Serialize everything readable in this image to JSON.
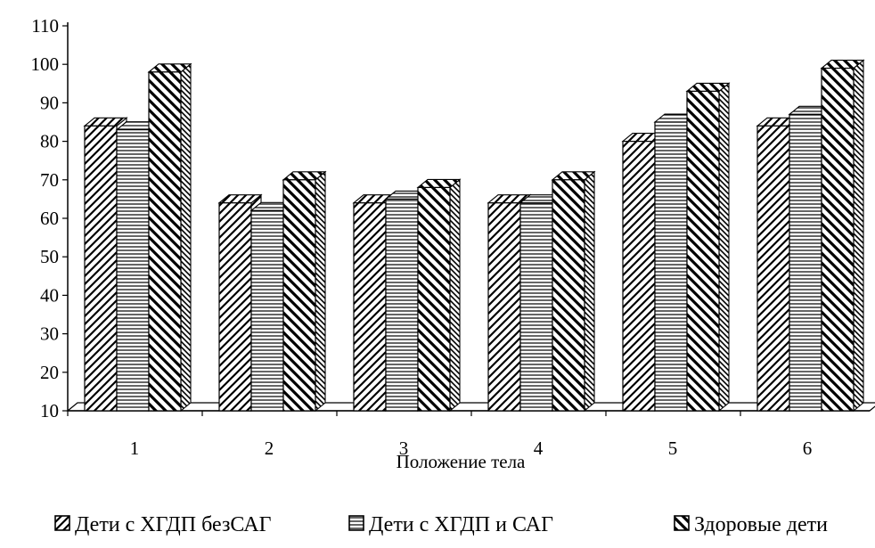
{
  "chart_data": {
    "type": "bar",
    "xlabel": "Положение тела",
    "ylabel": "",
    "ylim": [
      10,
      110
    ],
    "yticks": [
      10,
      20,
      30,
      40,
      50,
      60,
      70,
      80,
      90,
      100,
      110
    ],
    "categories": [
      "1",
      "2",
      "3",
      "4",
      "5",
      "6"
    ],
    "series": [
      {
        "name": "Дети с ХГДП безСАГ",
        "pattern": "diagonal-up",
        "values": [
          84,
          64,
          64,
          64,
          80,
          84
        ]
      },
      {
        "name": "Дети с ХГДП и САГ",
        "pattern": "horizontal",
        "values": [
          83,
          62,
          65,
          64,
          85,
          87
        ]
      },
      {
        "name": "Здоровые дети",
        "pattern": "diagonal-down",
        "values": [
          98,
          70,
          68,
          70,
          93,
          99
        ]
      }
    ],
    "grid": false,
    "legend_position": "bottom",
    "style": "3d-clustered-column",
    "colors": {
      "ink": "#000000",
      "fill": "#ffffff",
      "background": "#ffffff"
    }
  }
}
